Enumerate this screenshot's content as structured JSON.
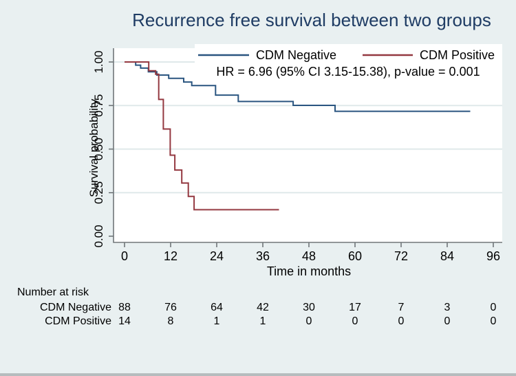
{
  "page": {
    "background": "#e9f0f1",
    "bottom_bar_color": "#b6bcbe"
  },
  "style": {
    "title_color": "#1f3c64",
    "axis_color": "#707679",
    "grid_color": "#dfe9ea",
    "plot_bg": "#ffffff",
    "text_color": "#000000"
  },
  "chart_data": {
    "type": "line",
    "subtype": "kaplan-meier-step",
    "title": "Recurrence free survival between two groups",
    "xlabel": "Time in months",
    "ylabel": "Survival probability",
    "annotation": "HR = 6.96 (95% CI 3.15-15.38), p-value = 0.001",
    "xlim": [
      0,
      96
    ],
    "ylim": [
      0.0,
      1.0
    ],
    "grid": true,
    "legend_position": "top-right-inside",
    "x_ticks": [
      0,
      12,
      24,
      36,
      48,
      60,
      72,
      84,
      96
    ],
    "y_ticks": [
      {
        "label": "0.00",
        "value": 0.0
      },
      {
        "label": "0.25",
        "value": 0.25
      },
      {
        "label": "0.50",
        "value": 0.5
      },
      {
        "label": "0.75",
        "value": 0.75
      },
      {
        "label": "1.00",
        "value": 1.0
      }
    ],
    "series": [
      {
        "name": "CDM Negative",
        "color": "#2a5580",
        "points": [
          [
            0,
            1.0
          ],
          [
            2.9,
            0.982
          ],
          [
            4.2,
            0.965
          ],
          [
            6.2,
            0.944
          ],
          [
            8.4,
            0.925
          ],
          [
            11.5,
            0.906
          ],
          [
            15.4,
            0.885
          ],
          [
            17.5,
            0.865
          ],
          [
            23.7,
            0.81
          ],
          [
            29.6,
            0.773
          ],
          [
            43.9,
            0.751
          ],
          [
            54.8,
            0.717
          ],
          [
            90,
            0.717
          ]
        ]
      },
      {
        "name": "CDM Positive",
        "color": "#943840",
        "points": [
          [
            0,
            1.0
          ],
          [
            6.3,
            0.95
          ],
          [
            8.1,
            0.93
          ],
          [
            8.9,
            0.785
          ],
          [
            10.1,
            0.615
          ],
          [
            11.9,
            0.465
          ],
          [
            13.1,
            0.38
          ],
          [
            14.9,
            0.305
          ],
          [
            16.6,
            0.228
          ],
          [
            18.1,
            0.152
          ],
          [
            40.2,
            0.152
          ]
        ]
      }
    ],
    "risk_table": {
      "title": "Number at risk",
      "times": [
        0,
        12,
        24,
        36,
        48,
        60,
        72,
        84,
        96
      ],
      "rows": [
        {
          "label": "CDM Negative",
          "values": [
            88,
            76,
            64,
            42,
            30,
            17,
            7,
            3,
            0
          ]
        },
        {
          "label": "CDM Positive",
          "values": [
            14,
            8,
            1,
            1,
            0,
            0,
            0,
            0,
            0
          ]
        }
      ]
    }
  }
}
